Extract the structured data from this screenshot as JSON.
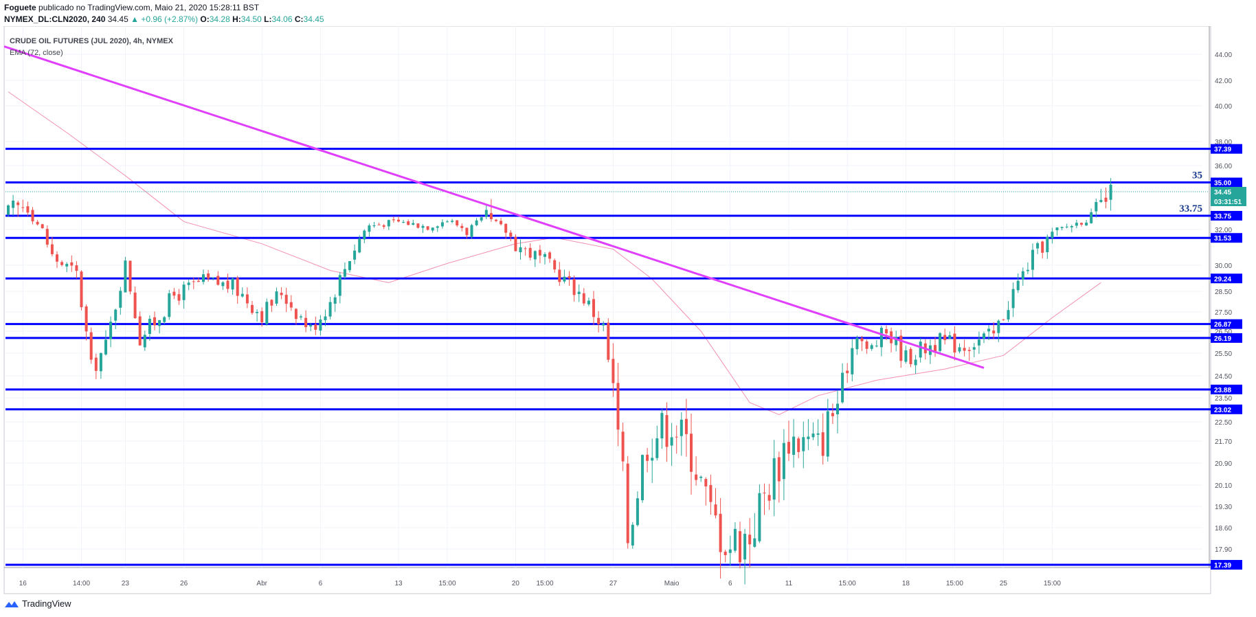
{
  "header": {
    "author": "Foguete",
    "published_text": "publicado no TradingView.com, Maio 21, 2020 15:28:11 BST",
    "symbol": "NYMEX_DL:CLN2020, 240",
    "last": "34.45",
    "change": "▲ +0.96 (+2.87%)",
    "o_label": "O:",
    "o_value": "34.28",
    "h_label": "H:",
    "h_value": "34.50",
    "l_label": "L:",
    "l_value": "34.06",
    "c_label": "C:",
    "c_value": "34.45"
  },
  "footer": {
    "brand": "TradingView"
  },
  "chart_data": {
    "type": "candlestick",
    "title": "CRUDE OIL FUTURES (JUL 2020), 4h, NYMEX",
    "indicator_label": "EMA (72, close)",
    "y_range": [
      17.1,
      45.0
    ],
    "y_ticks": [
      "44.00",
      "42.00",
      "40.00",
      "38.00",
      "36.00",
      "34.45",
      "32.00",
      "30.00",
      "28.50",
      "27.50",
      "26.50",
      "25.50",
      "24.50",
      "23.50",
      "22.50",
      "21.70",
      "20.90",
      "20.10",
      "19.30",
      "18.60",
      "17.90"
    ],
    "x_ticks": [
      "16",
      "14:00",
      "23",
      "26",
      "Abr",
      "6",
      "13",
      "15:00",
      "20",
      "15:00",
      "27",
      "Maio",
      "6",
      "11",
      "15:00",
      "18",
      "15:00",
      "25",
      "15:00"
    ],
    "horizontal_levels": [
      {
        "price": 37.39,
        "label": "37.39"
      },
      {
        "price": 35.0,
        "label": "35.00"
      },
      {
        "price": 33.75,
        "label": "33.75"
      },
      {
        "price": 31.53,
        "label": "31.53"
      },
      {
        "price": 29.24,
        "label": "29.24"
      },
      {
        "price": 26.87,
        "label": "26.87"
      },
      {
        "price": 26.19,
        "label": "26.19"
      },
      {
        "price": 23.88,
        "label": "23.88"
      },
      {
        "price": 23.02,
        "label": "23.02"
      },
      {
        "price": 17.39,
        "label": "17.39"
      }
    ],
    "annotations": [
      {
        "text": "35",
        "price": 35.0
      },
      {
        "text": "33.75",
        "price": 33.75
      }
    ],
    "last_price": {
      "value": 34.45,
      "label": "34.45",
      "countdown": "03:31:51"
    },
    "trendlines": [
      {
        "name": "descending-trendline",
        "from": {
          "i": 0,
          "p": 44.6
        },
        "to": {
          "i": 200,
          "p": 24.85
        }
      }
    ],
    "ema": [
      {
        "i": 0,
        "p": 41.1
      },
      {
        "i": 12,
        "p": 38.5
      },
      {
        "i": 24,
        "p": 35.4
      },
      {
        "i": 36,
        "p": 33.0
      },
      {
        "i": 52,
        "p": 31.2
      },
      {
        "i": 66,
        "p": 29.7
      },
      {
        "i": 78,
        "p": 29.0
      },
      {
        "i": 90,
        "p": 30.1
      },
      {
        "i": 104,
        "p": 31.2
      },
      {
        "i": 112,
        "p": 31.55
      },
      {
        "i": 124,
        "p": 30.9
      },
      {
        "i": 132,
        "p": 29.2
      },
      {
        "i": 142,
        "p": 26.5
      },
      {
        "i": 152,
        "p": 23.3
      },
      {
        "i": 158,
        "p": 22.8
      },
      {
        "i": 166,
        "p": 23.6
      },
      {
        "i": 178,
        "p": 24.3
      },
      {
        "i": 192,
        "p": 24.8
      },
      {
        "i": 204,
        "p": 25.4
      },
      {
        "i": 214,
        "p": 27.2
      },
      {
        "i": 224,
        "p": 29.0
      }
    ],
    "close_path": [
      {
        "i": 0,
        "p": 33.7
      },
      {
        "i": 4,
        "p": 34.2
      },
      {
        "i": 9,
        "p": 30.5
      },
      {
        "i": 14,
        "p": 29.5
      },
      {
        "i": 17,
        "p": 24.8
      },
      {
        "i": 20,
        "p": 25.8
      },
      {
        "i": 24,
        "p": 30.0
      },
      {
        "i": 27,
        "p": 26.2
      },
      {
        "i": 30,
        "p": 27.0
      },
      {
        "i": 34,
        "p": 28.3
      },
      {
        "i": 40,
        "p": 29.1
      },
      {
        "i": 46,
        "p": 28.8
      },
      {
        "i": 52,
        "p": 27.4
      },
      {
        "i": 56,
        "p": 28.5
      },
      {
        "i": 62,
        "p": 26.6
      },
      {
        "i": 66,
        "p": 28.0
      },
      {
        "i": 70,
        "p": 30.5
      },
      {
        "i": 74,
        "p": 32.5
      },
      {
        "i": 80,
        "p": 33.0
      },
      {
        "i": 86,
        "p": 32.4
      },
      {
        "i": 90,
        "p": 33.2
      },
      {
        "i": 94,
        "p": 32.0
      },
      {
        "i": 98,
        "p": 33.5
      },
      {
        "i": 104,
        "p": 31.2
      },
      {
        "i": 110,
        "p": 30.2
      },
      {
        "i": 114,
        "p": 29.2
      },
      {
        "i": 118,
        "p": 28.2
      },
      {
        "i": 122,
        "p": 26.7
      },
      {
        "i": 124,
        "p": 23.7
      },
      {
        "i": 127,
        "p": 18.4
      },
      {
        "i": 131,
        "p": 21.8
      },
      {
        "i": 136,
        "p": 22.5
      },
      {
        "i": 140,
        "p": 21.4
      },
      {
        "i": 144,
        "p": 19.0
      },
      {
        "i": 148,
        "p": 18.1
      },
      {
        "i": 152,
        "p": 18.4
      },
      {
        "i": 156,
        "p": 20.2
      },
      {
        "i": 160,
        "p": 21.9
      },
      {
        "i": 166,
        "p": 21.5
      },
      {
        "i": 170,
        "p": 23.4
      },
      {
        "i": 174,
        "p": 26.6
      },
      {
        "i": 176,
        "p": 25.5
      },
      {
        "i": 180,
        "p": 26.5
      },
      {
        "i": 184,
        "p": 25.3
      },
      {
        "i": 190,
        "p": 26.0
      },
      {
        "i": 196,
        "p": 25.9
      },
      {
        "i": 202,
        "p": 26.3
      },
      {
        "i": 206,
        "p": 28.5
      },
      {
        "i": 210,
        "p": 30.5
      },
      {
        "i": 214,
        "p": 31.7
      },
      {
        "i": 218,
        "p": 32.6
      },
      {
        "i": 222,
        "p": 33.5
      },
      {
        "i": 226,
        "p": 34.45
      }
    ]
  }
}
